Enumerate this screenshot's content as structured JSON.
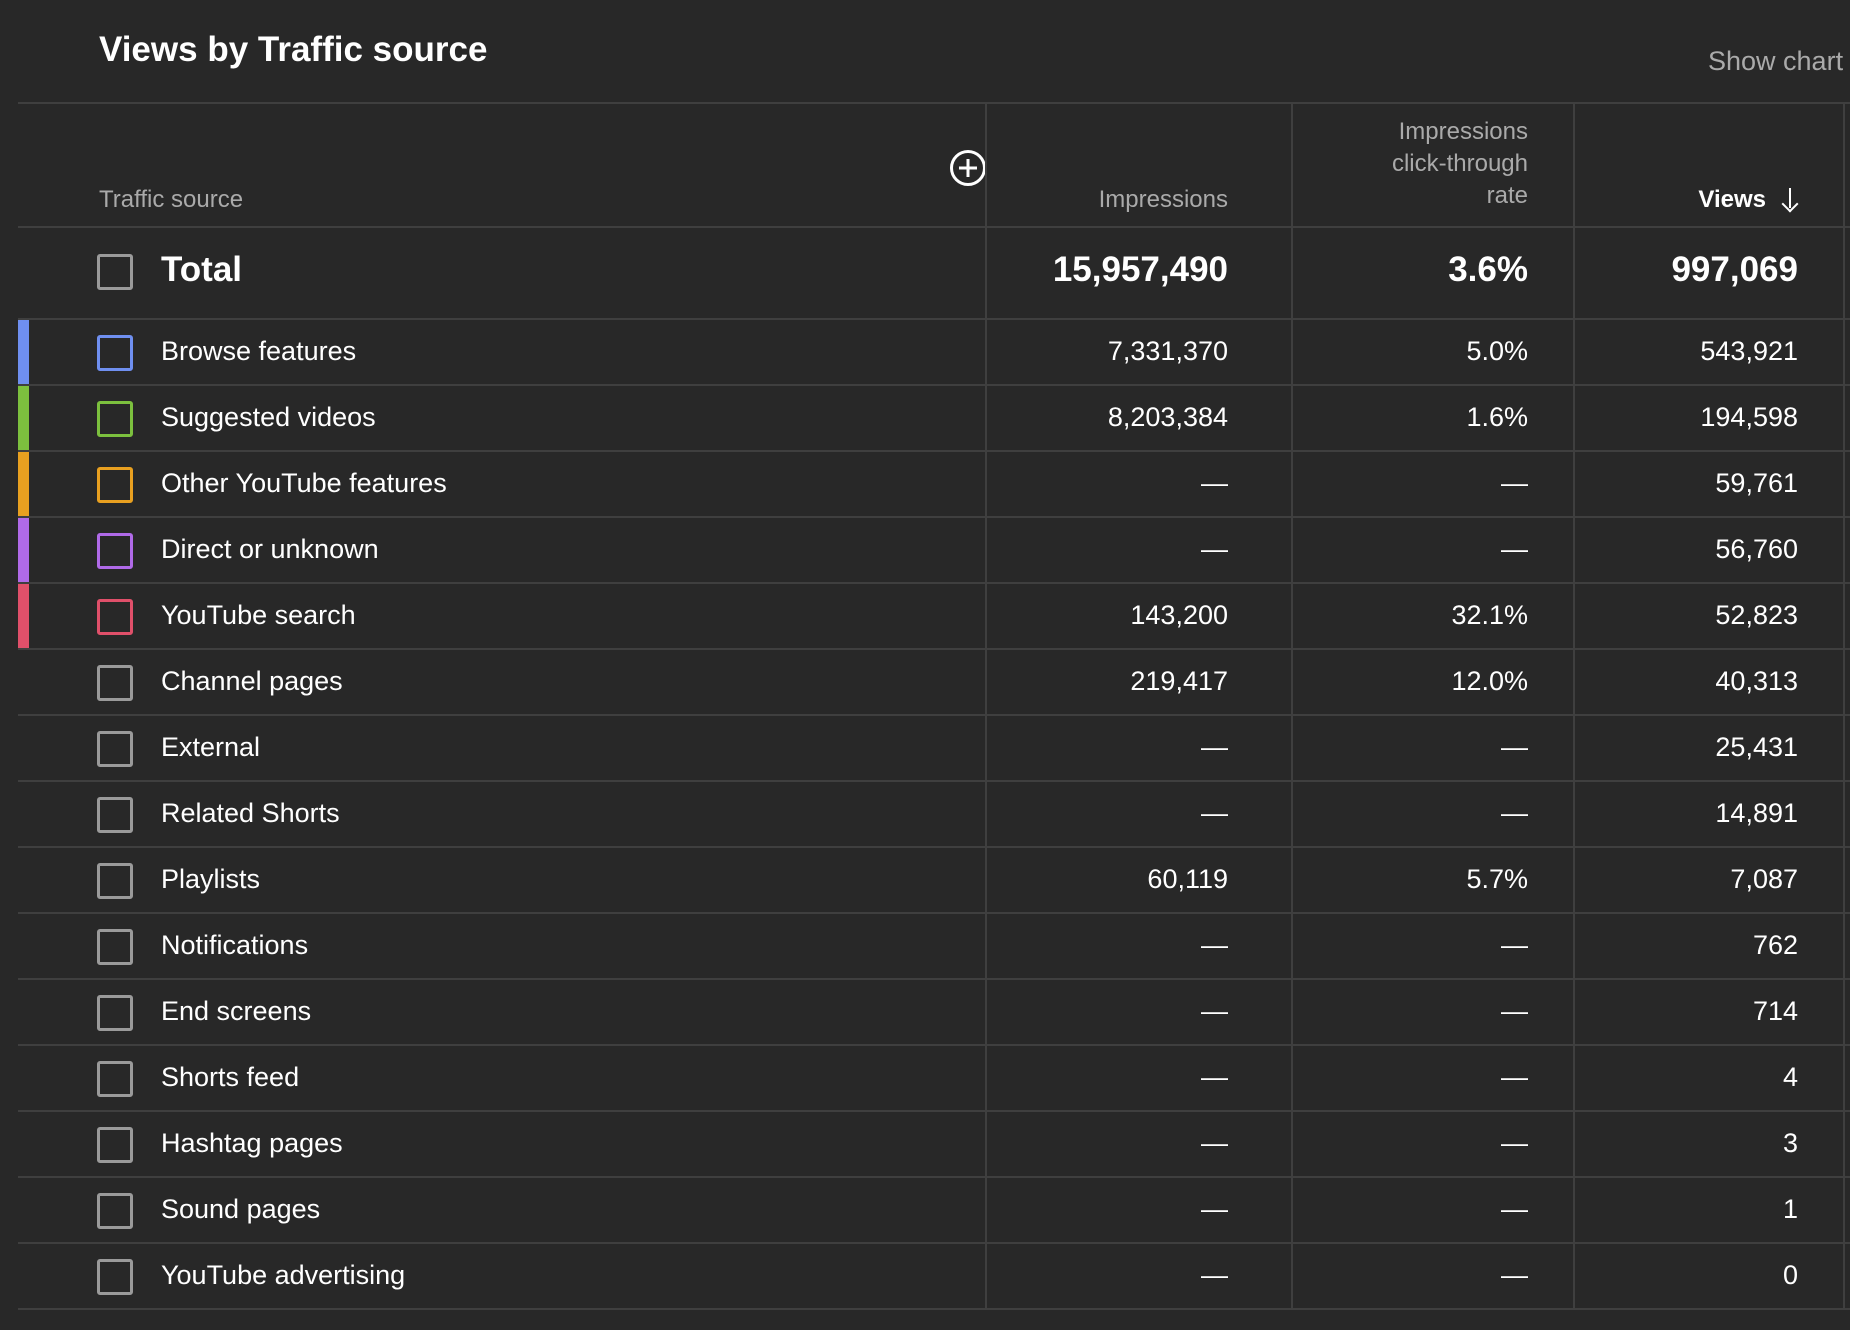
{
  "title": "Views by Traffic source",
  "show_chart_label": "Show chart",
  "headers": {
    "source": "Traffic source",
    "impressions": "Impressions",
    "ctr_line1": "Impressions",
    "ctr_line2": "click-through",
    "ctr_line3": "rate",
    "views": "Views"
  },
  "total": {
    "label": "Total",
    "impressions": "15,957,490",
    "ctr": "3.6%",
    "views": "997,069"
  },
  "rows": [
    {
      "label": "Browse features",
      "impressions": "7,331,370",
      "ctr": "5.0%",
      "views": "543,921",
      "color": "#6f8ff0"
    },
    {
      "label": "Suggested videos",
      "impressions": "8,203,384",
      "ctr": "1.6%",
      "views": "194,598",
      "color": "#7cc03e"
    },
    {
      "label": "Other YouTube features",
      "impressions": "—",
      "ctr": "—",
      "views": "59,761",
      "color": "#e8a020"
    },
    {
      "label": "Direct or unknown",
      "impressions": "—",
      "ctr": "—",
      "views": "56,760",
      "color": "#b06ae8"
    },
    {
      "label": "YouTube search",
      "impressions": "143,200",
      "ctr": "32.1%",
      "views": "52,823",
      "color": "#e0506a"
    },
    {
      "label": "Channel pages",
      "impressions": "219,417",
      "ctr": "12.0%",
      "views": "40,313",
      "color": ""
    },
    {
      "label": "External",
      "impressions": "—",
      "ctr": "—",
      "views": "25,431",
      "color": ""
    },
    {
      "label": "Related Shorts",
      "impressions": "—",
      "ctr": "—",
      "views": "14,891",
      "color": ""
    },
    {
      "label": "Playlists",
      "impressions": "60,119",
      "ctr": "5.7%",
      "views": "7,087",
      "color": ""
    },
    {
      "label": "Notifications",
      "impressions": "—",
      "ctr": "—",
      "views": "762",
      "color": ""
    },
    {
      "label": "End screens",
      "impressions": "—",
      "ctr": "—",
      "views": "714",
      "color": ""
    },
    {
      "label": "Shorts feed",
      "impressions": "—",
      "ctr": "—",
      "views": "4",
      "color": ""
    },
    {
      "label": "Hashtag pages",
      "impressions": "—",
      "ctr": "—",
      "views": "3",
      "color": ""
    },
    {
      "label": "Sound pages",
      "impressions": "—",
      "ctr": "—",
      "views": "1",
      "color": ""
    },
    {
      "label": "YouTube advertising",
      "impressions": "—",
      "ctr": "—",
      "views": "0",
      "color": ""
    }
  ]
}
